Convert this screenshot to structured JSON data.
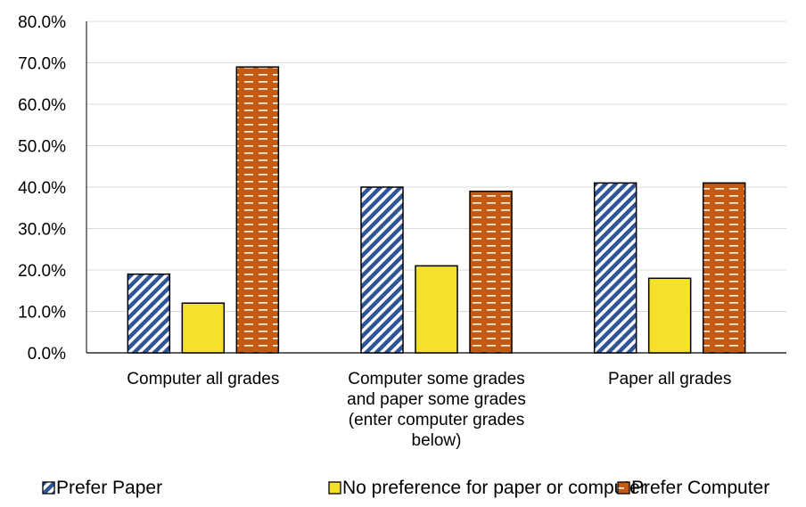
{
  "chart_data": {
    "type": "bar",
    "categories": [
      [
        "Computer all grades"
      ],
      [
        "Computer some grades",
        "and paper some grades",
        "(enter computer grades",
        "below)"
      ],
      [
        "Paper all grades"
      ]
    ],
    "series": [
      {
        "name": "Prefer Paper",
        "values": [
          19,
          40,
          41
        ],
        "color": "#2f5597",
        "pattern": "diagonal-stripes"
      },
      {
        "name": "No preference for paper or computer",
        "values": [
          12,
          21,
          18
        ],
        "color": "#f5e12a",
        "pattern": "solid"
      },
      {
        "name": "Prefer Computer",
        "values": [
          69,
          39,
          41
        ],
        "color": "#c55a11",
        "pattern": "dashed-horizontal"
      }
    ],
    "y_ticks": [
      "0.0%",
      "10.0%",
      "20.0%",
      "30.0%",
      "40.0%",
      "50.0%",
      "60.0%",
      "70.0%",
      "80.0%"
    ],
    "ylim": [
      0,
      80
    ],
    "title": "",
    "xlabel": "",
    "ylabel": "",
    "grid": true,
    "legend_position": "bottom"
  }
}
